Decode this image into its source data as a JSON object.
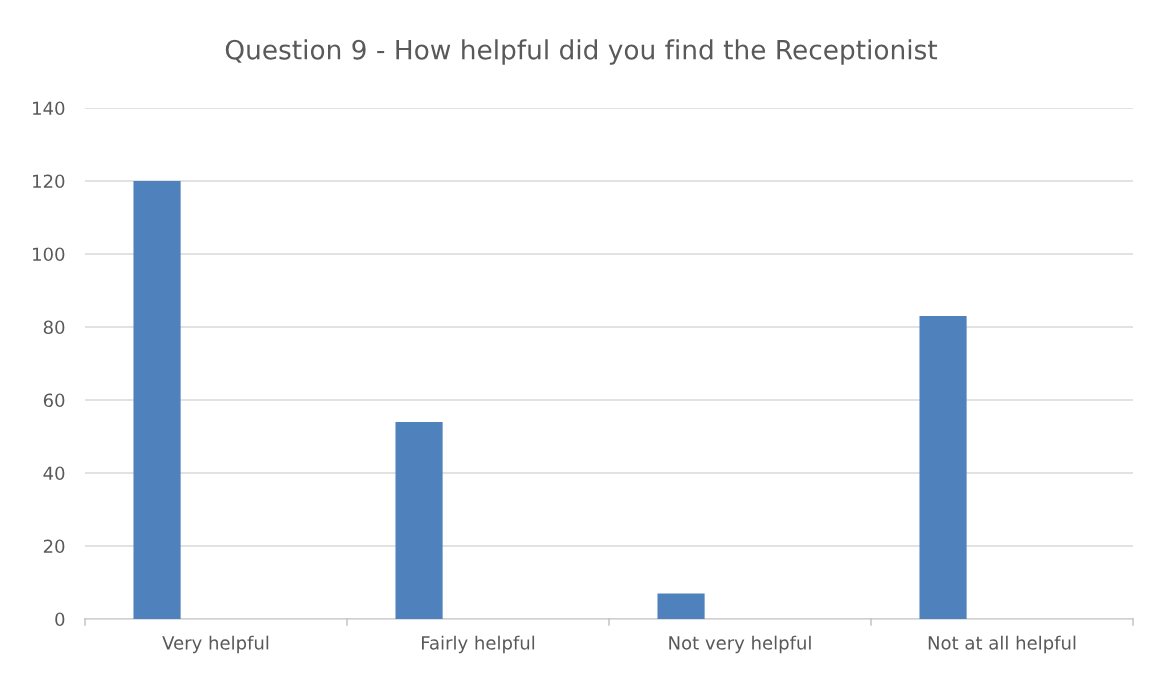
{
  "chart_data": {
    "type": "bar",
    "title": "Question 9 - How helpful did you find the Receptionist",
    "categories": [
      "Very helpful",
      "Fairly helpful",
      "Not very helpful",
      "Not at all helpful"
    ],
    "values": [
      120,
      54,
      7,
      83
    ],
    "color": "#4f81bd",
    "ylim": [
      0,
      140
    ],
    "yticks": [
      0,
      20,
      40,
      60,
      80,
      100,
      120,
      140
    ],
    "grid": "y",
    "legend": false
  }
}
